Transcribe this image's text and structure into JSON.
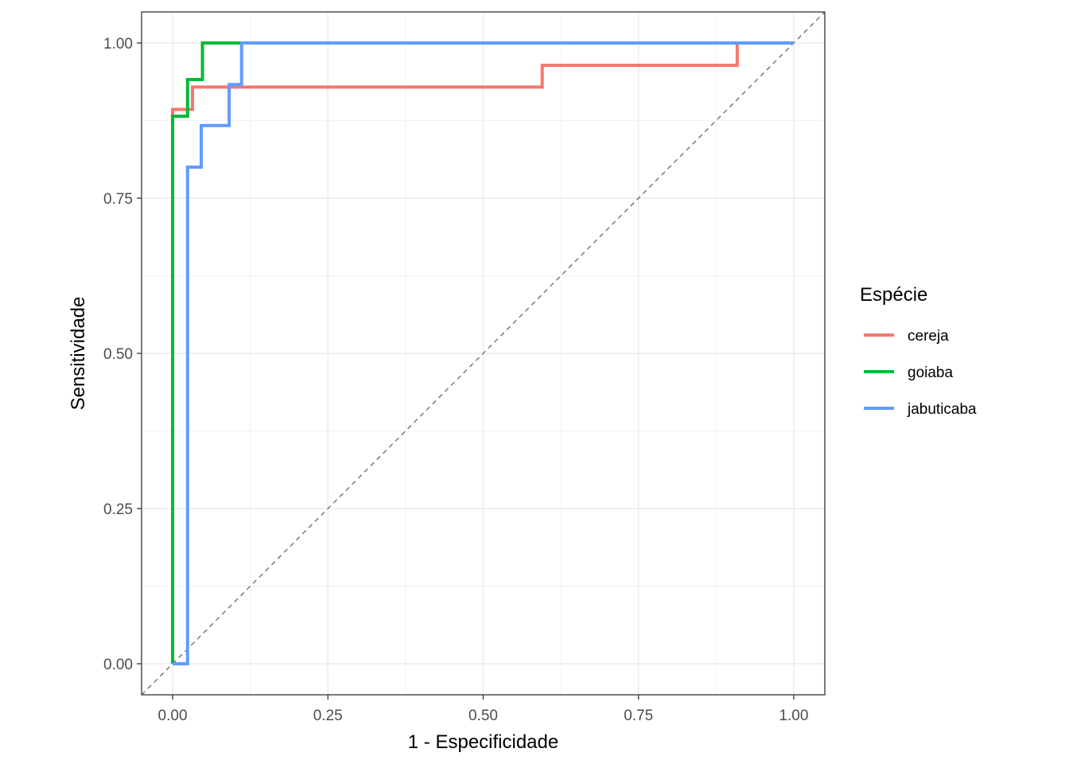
{
  "chart_data": {
    "type": "line",
    "title": "",
    "xlabel": "1 - Especificidade",
    "ylabel": "Sensitividade",
    "xlim": [
      -0.05,
      1.05
    ],
    "ylim": [
      -0.05,
      1.05
    ],
    "x_ticks": [
      0,
      0.25,
      0.5,
      0.75,
      1
    ],
    "x_tick_labels": [
      "0.00",
      "0.25",
      "0.50",
      "0.75",
      "1.00"
    ],
    "y_ticks": [
      0,
      0.25,
      0.5,
      0.75,
      1
    ],
    "y_tick_labels": [
      "0.00",
      "0.25",
      "0.50",
      "0.75",
      "1.00"
    ],
    "grid": true,
    "reference_line": {
      "x": [
        -0.05,
        1.05
      ],
      "y": [
        -0.05,
        1.05
      ],
      "color": "#666666",
      "style": "dashed"
    },
    "legend": {
      "title": "Espécie",
      "position": "right"
    },
    "series": [
      {
        "name": "cereja",
        "color": "#F8766D",
        "x": [
          0.0,
          0.0,
          0.032,
          0.032,
          0.595,
          0.595,
          0.909,
          0.909,
          1.0
        ],
        "y": [
          0.0,
          0.893,
          0.893,
          0.929,
          0.929,
          0.964,
          0.964,
          1.0,
          1.0
        ]
      },
      {
        "name": "goiaba",
        "color": "#00BA38",
        "x": [
          0.0,
          0.0,
          0.024,
          0.024,
          0.048,
          0.048,
          0.111
        ],
        "y": [
          0.0,
          0.882,
          0.882,
          0.941,
          0.941,
          1.0,
          1.0
        ]
      },
      {
        "name": "jabuticaba",
        "color": "#619CFF",
        "x": [
          0.0,
          0.024,
          0.024,
          0.046,
          0.046,
          0.091,
          0.091,
          0.111,
          0.111,
          1.0
        ],
        "y": [
          0.0,
          0.0,
          0.8,
          0.8,
          0.867,
          0.867,
          0.933,
          0.933,
          1.0,
          1.0
        ]
      }
    ]
  }
}
